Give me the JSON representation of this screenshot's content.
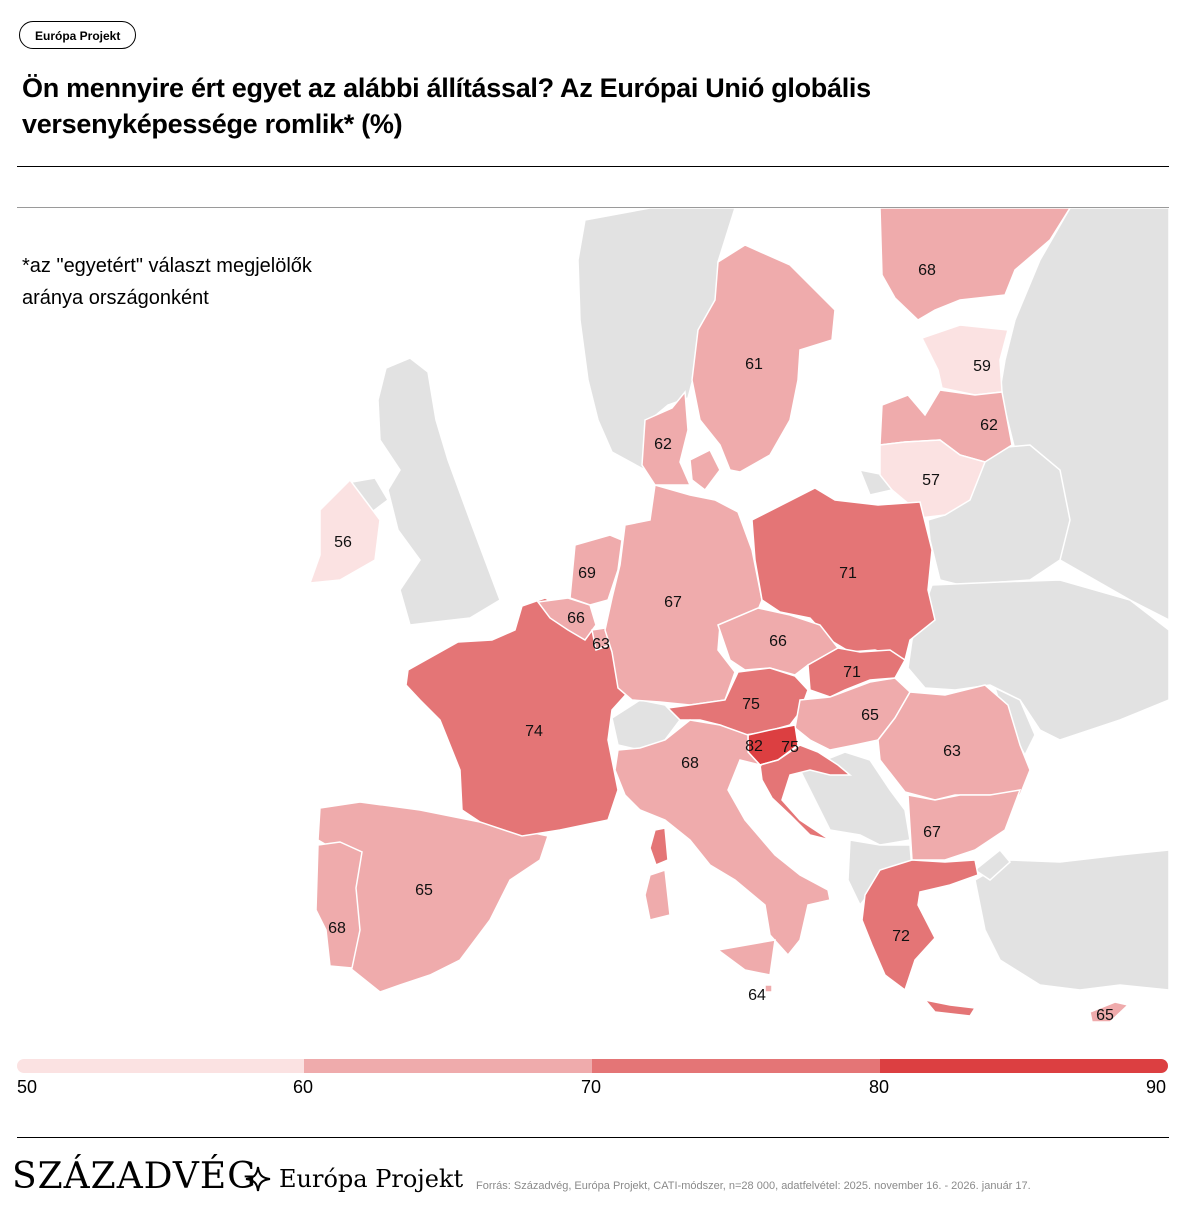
{
  "tag": "Európa Projekt",
  "title": "Ön mennyire ért egyet az alábbi állítással? Az Európai Unió globális versenyképessége romlik* (%)",
  "note_line1": "*az \"egyetért\" választ megjelölők",
  "note_line2": "aránya országonként",
  "colors": {
    "bin_50_60": "#fbe2e2",
    "bin_60_70": "#efabac",
    "bin_70_80": "#e47576",
    "bin_80_90": "#dc3f41",
    "no_data": "#e2e2e2"
  },
  "chart_data": {
    "type": "choropleth",
    "unit": "%",
    "values": {
      "Ireland": 56,
      "Spain": 65,
      "Portugal": 68,
      "France": 74,
      "Belgium": 66,
      "Netherlands": 69,
      "Luxembourg": 63,
      "Germany": 67,
      "Denmark": 62,
      "Sweden": 61,
      "Finland": 68,
      "Estonia": 59,
      "Latvia": 62,
      "Lithuania": 57,
      "Poland": 71,
      "Czechia": 66,
      "Slovakia": 71,
      "Austria": 75,
      "Hungary": 65,
      "Slovenia": 82,
      "Croatia": 75,
      "Italy": 68,
      "Malta": 64,
      "Romania": 63,
      "Bulgaria": 67,
      "Greece": 72,
      "Cyprus": 65
    },
    "legend": {
      "breaks": [
        50,
        60,
        70,
        80,
        90
      ],
      "colors": [
        "#fbe2e2",
        "#efabac",
        "#e47576",
        "#dc3f41"
      ]
    }
  },
  "brand_szazadveg": "SZÁZADVÉG",
  "brand_europa": "Európa Projekt",
  "source": "Forrás: Századvég, Európa Projekt, CATI-módszer, n=28 000, adatfelvétel: 2025. november 16. - 2026. január 17."
}
